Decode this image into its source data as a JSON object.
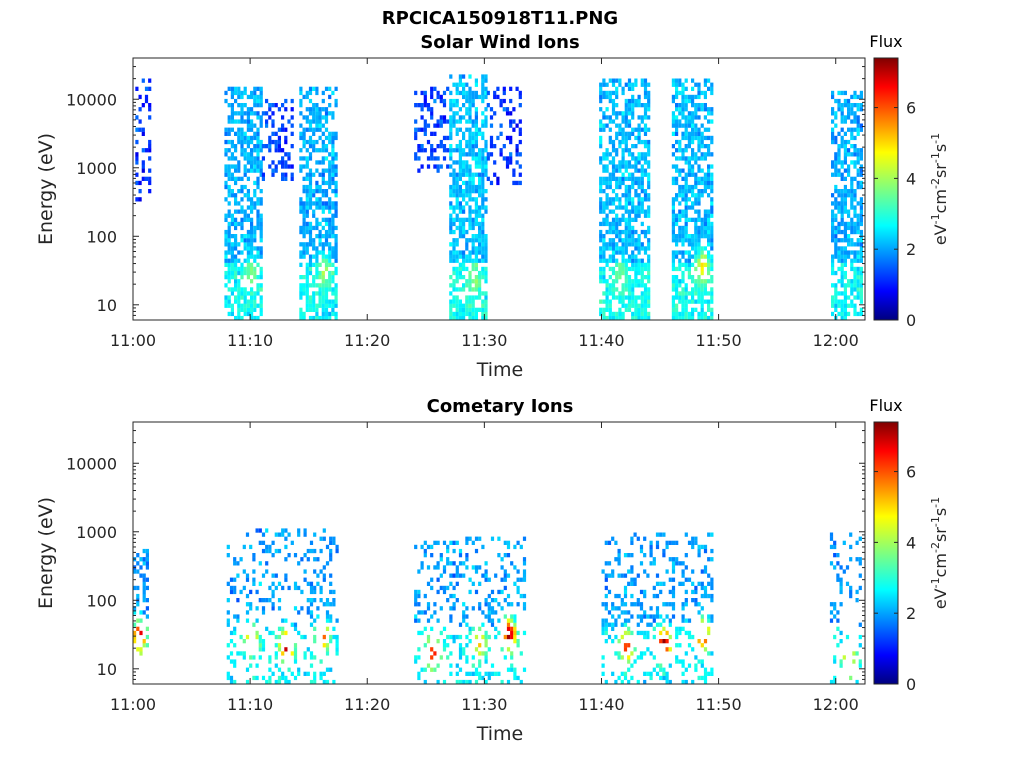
{
  "figure_title": "RPCICA150918T11.PNG",
  "colors": {
    "colormap": [
      "#00007f",
      "#0000ff",
      "#007fff",
      "#00ffff",
      "#7fff7f",
      "#ffff00",
      "#ff7f00",
      "#ff0000",
      "#7f0000"
    ],
    "axis": "#262626",
    "background": "#ffffff"
  },
  "chart_data": [
    {
      "type": "heatmap",
      "title": "Solar Wind Ions",
      "xlabel": "Time",
      "ylabel": "Energy (eV)",
      "x_ticks": [
        "11:00",
        "11:10",
        "11:20",
        "11:30",
        "11:40",
        "11:50",
        "12:00"
      ],
      "xlim_minutes": [
        0,
        62.5
      ],
      "y_scale": "log",
      "y_ticks": [
        "10",
        "100",
        "1000",
        "10000"
      ],
      "ylim": [
        6,
        40000
      ],
      "colorbar": {
        "title": "Flux",
        "label": "eV-1cm-2sr-1s-1",
        "ticks": [
          "0",
          "2",
          "4",
          "6"
        ],
        "range": [
          0,
          7.4
        ]
      },
      "bursts": [
        {
          "start_min": 0.2,
          "end_min": 1.5,
          "emin": 300,
          "emax": 18000,
          "flux": 1.3,
          "density": 0.35
        },
        {
          "start_min": 7.8,
          "end_min": 11.0,
          "emin": 6,
          "emax": 15000,
          "flux": 2.2,
          "density": 0.7
        },
        {
          "start_min": 11.0,
          "end_min": 13.5,
          "emin": 600,
          "emax": 10000,
          "flux": 1.4,
          "density": 0.45
        },
        {
          "start_min": 14.2,
          "end_min": 17.3,
          "emin": 6,
          "emax": 14000,
          "flux": 2.2,
          "density": 0.7
        },
        {
          "start_min": 24.0,
          "end_min": 27.0,
          "emin": 800,
          "emax": 15000,
          "flux": 1.4,
          "density": 0.4
        },
        {
          "start_min": 27.0,
          "end_min": 30.2,
          "emin": 6,
          "emax": 22000,
          "flux": 2.3,
          "density": 0.75
        },
        {
          "start_min": 30.2,
          "end_min": 33.2,
          "emin": 500,
          "emax": 14000,
          "flux": 1.3,
          "density": 0.35
        },
        {
          "start_min": 39.8,
          "end_min": 44.0,
          "emin": 6,
          "emax": 20000,
          "flux": 2.3,
          "density": 0.75
        },
        {
          "start_min": 46.0,
          "end_min": 49.5,
          "emin": 6,
          "emax": 20000,
          "flux": 2.3,
          "density": 0.75
        },
        {
          "start_min": 59.6,
          "end_min": 62.5,
          "emin": 6,
          "emax": 12000,
          "flux": 2.2,
          "density": 0.7
        }
      ],
      "hotspots": [
        {
          "t_min": 10.0,
          "energy": 28,
          "flux": 3.8
        },
        {
          "t_min": 16.2,
          "energy": 30,
          "flux": 4.0
        },
        {
          "t_min": 29.0,
          "energy": 22,
          "flux": 3.8
        },
        {
          "t_min": 41.5,
          "energy": 25,
          "flux": 3.6
        },
        {
          "t_min": 48.5,
          "energy": 35,
          "flux": 4.8
        }
      ]
    },
    {
      "type": "heatmap",
      "title": "Cometary Ions",
      "xlabel": "Time",
      "ylabel": "Energy (eV)",
      "x_ticks": [
        "11:00",
        "11:10",
        "11:20",
        "11:30",
        "11:40",
        "11:50",
        "12:00"
      ],
      "xlim_minutes": [
        0,
        62.5
      ],
      "y_scale": "log",
      "y_ticks": [
        "10",
        "100",
        "1000",
        "10000"
      ],
      "ylim": [
        6,
        40000
      ],
      "colorbar": {
        "title": "Flux",
        "label": "eV-1cm-2sr-1s-1",
        "ticks": [
          "0",
          "2",
          "4",
          "6"
        ],
        "range": [
          0,
          7.4
        ]
      },
      "bursts": [
        {
          "start_min": 0.0,
          "end_min": 1.2,
          "emin": 15,
          "emax": 550,
          "flux": 2.0,
          "density": 0.45
        },
        {
          "start_min": 8.0,
          "end_min": 17.5,
          "emin": 6,
          "emax": 1000,
          "flux": 2.1,
          "density": 0.28
        },
        {
          "start_min": 24.0,
          "end_min": 33.5,
          "emin": 6,
          "emax": 800,
          "flux": 2.1,
          "density": 0.28
        },
        {
          "start_min": 40.0,
          "end_min": 49.5,
          "emin": 6,
          "emax": 950,
          "flux": 2.1,
          "density": 0.3
        },
        {
          "start_min": 59.5,
          "end_min": 62.5,
          "emin": 6,
          "emax": 900,
          "flux": 2.0,
          "density": 0.22
        }
      ],
      "hotspots": [
        {
          "t_min": 0.4,
          "energy": 28,
          "flux": 7.0
        },
        {
          "t_min": 10.0,
          "energy": 25,
          "flux": 5.5
        },
        {
          "t_min": 13.0,
          "energy": 20,
          "flux": 7.2
        },
        {
          "t_min": 16.0,
          "energy": 28,
          "flux": 6.0
        },
        {
          "t_min": 25.5,
          "energy": 16,
          "flux": 6.5
        },
        {
          "t_min": 29.5,
          "energy": 22,
          "flux": 5.0
        },
        {
          "t_min": 32.0,
          "energy": 30,
          "flux": 7.2
        },
        {
          "t_min": 42.0,
          "energy": 20,
          "flux": 6.2
        },
        {
          "t_min": 45.2,
          "energy": 22,
          "flux": 7.2
        },
        {
          "t_min": 48.5,
          "energy": 30,
          "flux": 6.8
        },
        {
          "t_min": 61.0,
          "energy": 12,
          "flux": 5.5
        }
      ]
    }
  ]
}
